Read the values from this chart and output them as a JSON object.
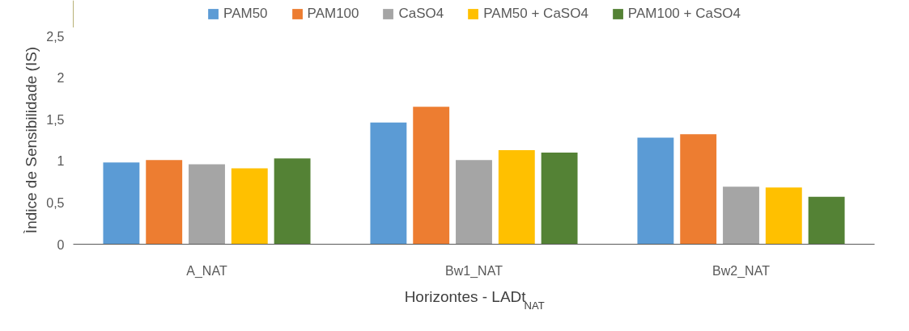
{
  "chart_data": {
    "type": "bar",
    "xlabel": "Horizontes - LADt$_{NAT}$",
    "ylabel": "Ìndice de Sensibilidade (IS)",
    "categories": [
      "A_NAT",
      "Bw1_NAT",
      "Bw2_NAT"
    ],
    "series": [
      {
        "name": "PAM50",
        "color": "#5b9bd5",
        "values": [
          0.98,
          1.46,
          1.28
        ]
      },
      {
        "name": "PAM100",
        "color": "#ed7d31",
        "values": [
          1.01,
          1.65,
          1.32
        ]
      },
      {
        "name": "CaSO4",
        "color": "#a5a5a5",
        "values": [
          0.96,
          1.01,
          0.69
        ]
      },
      {
        "name": "PAM50 + CaSO4",
        "color": "#ffc000",
        "values": [
          0.91,
          1.13,
          0.68
        ]
      },
      {
        "name": "PAM100 + CaSO4",
        "color": "#548235",
        "values": [
          1.03,
          1.1,
          0.57
        ]
      }
    ],
    "ylim": [
      0,
      2.5
    ],
    "yticks": [
      {
        "value": 0,
        "label": "0"
      },
      {
        "value": 0.5,
        "label": "0,5"
      },
      {
        "value": 1,
        "label": "1"
      },
      {
        "value": 1.5,
        "label": "1,5"
      },
      {
        "value": 2,
        "label": "2"
      },
      {
        "value": 2.5,
        "label": "2,5"
      }
    ],
    "grid": false,
    "legend": "top"
  }
}
